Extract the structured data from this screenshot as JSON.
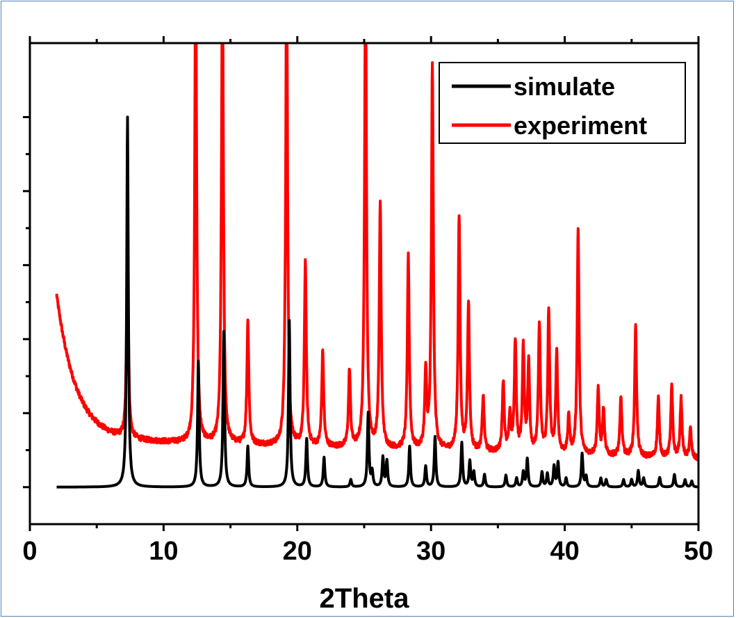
{
  "chart_data": {
    "type": "line",
    "title": "",
    "xlabel": "2Theta",
    "ylabel": "",
    "xlim": [
      0,
      50
    ],
    "ylim": [
      -0.5,
      6
    ],
    "x_ticks": [
      0,
      10,
      20,
      30,
      40,
      50
    ],
    "x_tick_labels": [
      "0",
      "10",
      "20",
      "30",
      "40",
      "50"
    ],
    "y_tick_labels_shown": false,
    "grid": false,
    "legend_position": "top-right",
    "series": [
      {
        "name": "simulate",
        "color": "#000000",
        "baseline": 0.0,
        "baseline_end": 0.0,
        "peaks": [
          {
            "x": 7.3,
            "h": 5.0
          },
          {
            "x": 12.6,
            "h": 1.7
          },
          {
            "x": 14.5,
            "h": 2.1
          },
          {
            "x": 16.3,
            "h": 0.55
          },
          {
            "x": 19.4,
            "h": 2.25
          },
          {
            "x": 20.7,
            "h": 0.65
          },
          {
            "x": 22.0,
            "h": 0.4
          },
          {
            "x": 24.0,
            "h": 0.1
          },
          {
            "x": 25.3,
            "h": 1.0
          },
          {
            "x": 25.6,
            "h": 0.2
          },
          {
            "x": 26.4,
            "h": 0.4
          },
          {
            "x": 26.7,
            "h": 0.35
          },
          {
            "x": 28.4,
            "h": 0.55
          },
          {
            "x": 29.6,
            "h": 0.28
          },
          {
            "x": 30.3,
            "h": 0.68
          },
          {
            "x": 32.3,
            "h": 0.6
          },
          {
            "x": 32.9,
            "h": 0.35
          },
          {
            "x": 33.2,
            "h": 0.2
          },
          {
            "x": 34.0,
            "h": 0.17
          },
          {
            "x": 35.6,
            "h": 0.16
          },
          {
            "x": 36.4,
            "h": 0.12
          },
          {
            "x": 36.9,
            "h": 0.2
          },
          {
            "x": 37.2,
            "h": 0.38
          },
          {
            "x": 38.3,
            "h": 0.2
          },
          {
            "x": 38.7,
            "h": 0.18
          },
          {
            "x": 39.2,
            "h": 0.28
          },
          {
            "x": 39.5,
            "h": 0.33
          },
          {
            "x": 40.1,
            "h": 0.12
          },
          {
            "x": 41.3,
            "h": 0.45
          },
          {
            "x": 41.6,
            "h": 0.14
          },
          {
            "x": 42.7,
            "h": 0.12
          },
          {
            "x": 43.1,
            "h": 0.1
          },
          {
            "x": 44.4,
            "h": 0.1
          },
          {
            "x": 45.0,
            "h": 0.1
          },
          {
            "x": 45.5,
            "h": 0.22
          },
          {
            "x": 45.9,
            "h": 0.12
          },
          {
            "x": 47.1,
            "h": 0.13
          },
          {
            "x": 48.2,
            "h": 0.17
          },
          {
            "x": 49.0,
            "h": 0.1
          },
          {
            "x": 49.5,
            "h": 0.08
          }
        ]
      },
      {
        "name": "experiment",
        "color": "#ff0000",
        "baseline": 0.65,
        "baseline_end": 0.38,
        "low_angle_rise": {
          "start_value": 2.6,
          "decay": 1.45
        },
        "peaks": [
          {
            "x": 7.3,
            "h": 2.5
          },
          {
            "x": 12.4,
            "h": 6.5
          },
          {
            "x": 14.4,
            "h": 6.5
          },
          {
            "x": 16.3,
            "h": 1.65
          },
          {
            "x": 19.2,
            "h": 6.5
          },
          {
            "x": 20.6,
            "h": 2.5
          },
          {
            "x": 21.9,
            "h": 1.3
          },
          {
            "x": 23.9,
            "h": 1.05
          },
          {
            "x": 25.1,
            "h": 6.5
          },
          {
            "x": 26.2,
            "h": 3.3
          },
          {
            "x": 28.3,
            "h": 2.6
          },
          {
            "x": 29.6,
            "h": 1.0
          },
          {
            "x": 30.1,
            "h": 5.2
          },
          {
            "x": 32.1,
            "h": 3.15
          },
          {
            "x": 32.8,
            "h": 2.0
          },
          {
            "x": 33.9,
            "h": 0.75
          },
          {
            "x": 35.4,
            "h": 0.95
          },
          {
            "x": 35.9,
            "h": 0.5
          },
          {
            "x": 36.3,
            "h": 1.5
          },
          {
            "x": 36.9,
            "h": 1.4
          },
          {
            "x": 37.3,
            "h": 1.2
          },
          {
            "x": 38.1,
            "h": 1.75
          },
          {
            "x": 38.8,
            "h": 1.9
          },
          {
            "x": 39.4,
            "h": 1.35
          },
          {
            "x": 40.3,
            "h": 0.5
          },
          {
            "x": 41.0,
            "h": 3.05
          },
          {
            "x": 42.5,
            "h": 0.9
          },
          {
            "x": 42.9,
            "h": 0.6
          },
          {
            "x": 44.2,
            "h": 0.8
          },
          {
            "x": 45.3,
            "h": 1.75
          },
          {
            "x": 47.0,
            "h": 0.8
          },
          {
            "x": 48.0,
            "h": 0.95
          },
          {
            "x": 48.7,
            "h": 0.8
          },
          {
            "x": 49.4,
            "h": 0.4
          }
        ]
      }
    ]
  }
}
